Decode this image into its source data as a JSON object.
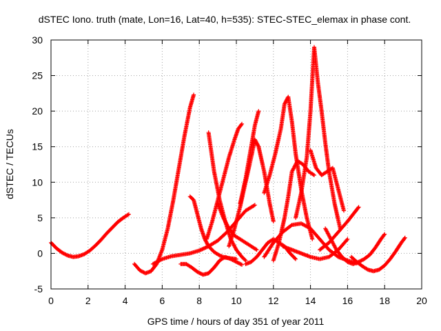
{
  "chart_data": {
    "type": "scatter",
    "title": "dSTEC Iono. truth (mate, Lon=16, Lat=40, h=535): STEC-STEC_elemax in phase cont.",
    "xlabel": "GPS time / hours of day 351 of year 2011",
    "ylabel": "dSTEC  / TECUs",
    "xlim": [
      0,
      20
    ],
    "ylim": [
      -5,
      30
    ],
    "x_ticks": [
      "0",
      "2",
      "4",
      "6",
      "8",
      "10",
      "12",
      "14",
      "16",
      "18",
      "20"
    ],
    "y_ticks": [
      "-5",
      "0",
      "5",
      "10",
      "15",
      "20",
      "25",
      "30"
    ],
    "grid": true,
    "marker": "plus",
    "color": "#ff0000",
    "series": [
      {
        "x": [
          0.0,
          0.3,
          0.6,
          0.9,
          1.2,
          1.5,
          1.8,
          2.1,
          2.4,
          2.7,
          3.0,
          3.3,
          3.6,
          3.9,
          4.2
        ],
        "y": [
          1.5,
          0.7,
          0.1,
          -0.3,
          -0.5,
          -0.4,
          -0.1,
          0.4,
          1.1,
          1.9,
          2.8,
          3.6,
          4.4,
          5.0,
          5.5
        ]
      },
      {
        "x": [
          4.5,
          4.8,
          5.1,
          5.4,
          5.7,
          6.0,
          6.3,
          6.6,
          6.9,
          7.2,
          7.5,
          7.7
        ],
        "y": [
          -1.5,
          -2.4,
          -2.8,
          -2.5,
          -1.5,
          0.5,
          3.5,
          7.5,
          12.0,
          16.5,
          20.5,
          22.3
        ]
      },
      {
        "x": [
          5.5,
          6.0,
          6.5,
          7.0,
          7.5,
          8.0,
          8.5,
          9.0,
          9.5,
          10.0,
          10.5,
          11.0
        ],
        "y": [
          -1.5,
          -0.8,
          -0.4,
          -0.2,
          0.0,
          0.4,
          1.0,
          1.8,
          3.0,
          4.5,
          6.0,
          6.8
        ]
      },
      {
        "x": [
          7.0,
          7.3,
          7.6,
          7.9,
          8.2,
          8.5,
          8.8,
          9.1,
          9.4,
          9.7,
          10.0,
          10.3
        ],
        "y": [
          -1.5,
          -1.5,
          -2.0,
          -2.6,
          -3.0,
          -2.8,
          -2.0,
          -1.0,
          -0.5,
          -0.8,
          -1.2,
          -1.6
        ]
      },
      {
        "x": [
          7.5,
          7.7,
          7.9,
          8.1,
          8.3,
          8.5,
          8.8,
          9.1,
          9.4,
          9.7,
          10.0
        ],
        "y": [
          8.0,
          7.5,
          5.5,
          3.5,
          2.0,
          1.0,
          0.2,
          -0.3,
          -0.6,
          -0.7,
          -0.8
        ]
      },
      {
        "x": [
          8.5,
          8.8,
          9.1,
          9.4,
          9.7,
          10.0,
          10.3,
          10.5
        ],
        "y": [
          17.0,
          11.5,
          7.5,
          4.5,
          2.0,
          0.5,
          -0.5,
          -1.0
        ]
      },
      {
        "x": [
          8.4,
          8.7,
          9.0,
          9.3,
          9.6,
          9.9,
          10.1,
          10.3
        ],
        "y": [
          2.0,
          4.5,
          7.5,
          10.5,
          13.5,
          16.0,
          17.5,
          18.2
        ]
      },
      {
        "x": [
          9.0,
          9.3,
          9.6,
          9.9,
          10.2,
          10.5,
          10.8,
          11.1
        ],
        "y": [
          7.0,
          5.0,
          3.5,
          2.5,
          2.0,
          1.5,
          1.0,
          0.5
        ]
      },
      {
        "x": [
          9.6,
          9.9,
          10.2,
          10.5,
          10.8,
          11.0,
          11.2,
          11.5,
          11.8,
          12.0
        ],
        "y": [
          1.0,
          3.5,
          6.5,
          10.0,
          13.5,
          16.0,
          15.0,
          11.5,
          7.0,
          4.5
        ]
      },
      {
        "x": [
          10.2,
          10.5,
          10.8,
          11.0,
          11.2
        ],
        "y": [
          7.0,
          10.5,
          15.0,
          18.0,
          20.0
        ]
      },
      {
        "x": [
          10.5,
          10.8,
          11.1,
          11.4,
          11.7,
          12.0,
          12.3,
          12.6,
          12.9,
          13.2
        ],
        "y": [
          -1.5,
          -1.2,
          -0.5,
          0.5,
          1.5,
          2.0,
          1.5,
          1.0,
          0.0,
          -0.8
        ]
      },
      {
        "x": [
          11.5,
          11.8,
          12.1,
          12.4,
          12.6,
          12.8,
          13.0,
          13.2,
          13.5,
          13.8,
          14.1
        ],
        "y": [
          8.5,
          11.0,
          14.0,
          17.5,
          21.0,
          22.0,
          18.5,
          14.0,
          9.0,
          5.0,
          2.0
        ]
      },
      {
        "x": [
          12.0,
          12.3,
          12.6,
          12.8,
          13.0,
          13.3,
          13.6,
          13.9,
          14.2
        ],
        "y": [
          -1.0,
          1.5,
          5.0,
          8.0,
          11.5,
          13.0,
          12.5,
          11.5,
          11.0
        ]
      },
      {
        "x": [
          13.2,
          13.5,
          13.8,
          14.0,
          14.2,
          14.4,
          14.6,
          14.8,
          15.0,
          15.3,
          15.6
        ],
        "y": [
          5.0,
          8.5,
          13.5,
          20.0,
          29.0,
          24.0,
          20.0,
          15.5,
          11.5,
          7.0,
          3.5
        ]
      },
      {
        "x": [
          14.0,
          14.3,
          14.6,
          14.9,
          15.2,
          15.5,
          15.8
        ],
        "y": [
          14.5,
          12.0,
          11.0,
          11.5,
          12.0,
          9.0,
          6.0
        ]
      },
      {
        "x": [
          11.5,
          12.0,
          12.5,
          13.0,
          13.5,
          14.0,
          14.5,
          15.0,
          15.5,
          16.0,
          16.5
        ],
        "y": [
          -0.5,
          1.5,
          3.0,
          4.0,
          4.2,
          3.5,
          2.0,
          0.5,
          -0.5,
          -1.0,
          -1.4
        ]
      },
      {
        "x": [
          12.5,
          13.0,
          13.5,
          14.0,
          14.5,
          15.0,
          15.5,
          16.0
        ],
        "y": [
          1.0,
          0.5,
          0.0,
          -0.5,
          -0.8,
          -0.5,
          0.5,
          2.0
        ]
      },
      {
        "x": [
          14.5,
          15.0,
          15.5,
          16.0,
          16.3,
          16.6
        ],
        "y": [
          0.5,
          1.5,
          3.0,
          4.5,
          5.5,
          6.5
        ]
      },
      {
        "x": [
          14.8,
          15.1,
          15.4,
          15.7,
          16.0,
          16.3,
          16.6,
          16.9,
          17.2,
          17.5,
          17.8,
          18.0
        ],
        "y": [
          3.5,
          2.0,
          0.5,
          -0.5,
          -1.2,
          -1.5,
          -1.2,
          -0.8,
          -0.2,
          0.8,
          2.0,
          2.7
        ]
      },
      {
        "x": [
          16.2,
          16.5,
          16.8,
          17.1,
          17.4,
          17.7,
          18.0,
          18.3,
          18.6,
          18.9,
          19.1
        ],
        "y": [
          -0.5,
          -1.2,
          -1.8,
          -2.3,
          -2.5,
          -2.3,
          -1.7,
          -0.8,
          0.3,
          1.5,
          2.2
        ]
      }
    ]
  }
}
